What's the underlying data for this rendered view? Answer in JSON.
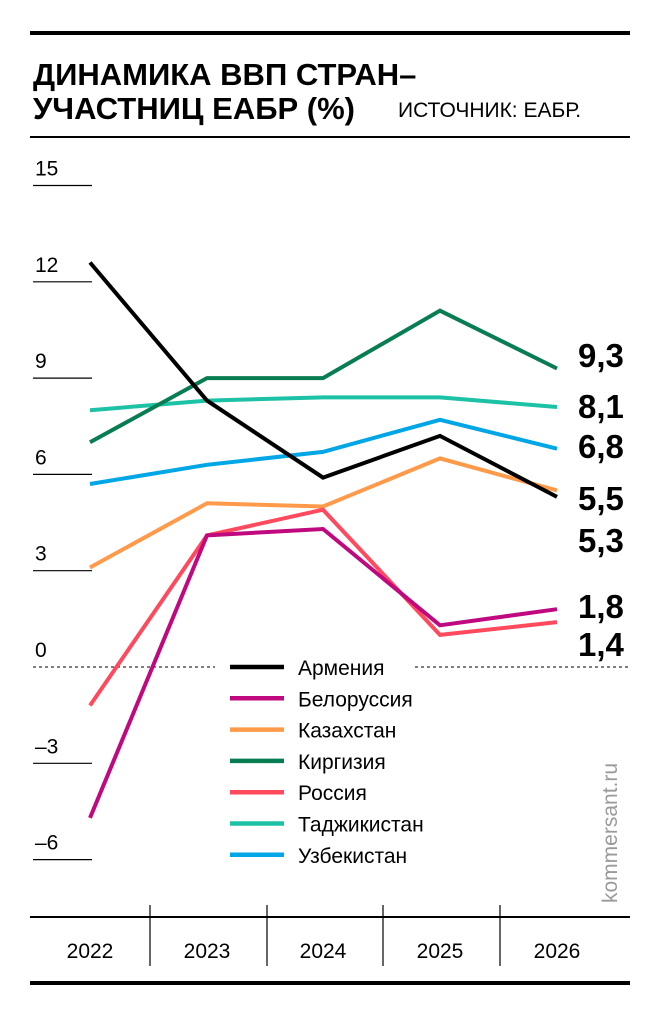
{
  "chart_data": {
    "type": "line",
    "title_line1": "ДИНАМИКА ВВП СТРАН–",
    "title_line2": "УЧАСТНИЦ ЕАБР (%)",
    "source": "ИСТОЧНИК: ЕАБР.",
    "watermark": "kommersant.ru",
    "xlabel": "",
    "ylabel": "",
    "categories": [
      "2022",
      "2023",
      "2024",
      "2025",
      "2026"
    ],
    "ylim": [
      -6,
      15
    ],
    "yticks": [
      15,
      12,
      9,
      6,
      3,
      0,
      -3,
      -6
    ],
    "ytick_labels": [
      "15",
      "12",
      "9",
      "6",
      "3",
      "0",
      "–3",
      "–6"
    ],
    "legend_position": "bottom-center",
    "series": [
      {
        "name": "Армения",
        "color": "#000000",
        "values": [
          12.6,
          8.3,
          5.9,
          7.2,
          5.3
        ],
        "end_label": "5,3"
      },
      {
        "name": "Белоруссия",
        "color": "#c0087f",
        "values": [
          -4.7,
          4.1,
          4.3,
          1.3,
          1.8
        ],
        "end_label": "1,8"
      },
      {
        "name": "Казахстан",
        "color": "#ff9a4a",
        "values": [
          3.1,
          5.1,
          5.0,
          6.5,
          5.5
        ],
        "end_label": "5,5"
      },
      {
        "name": "Киргизия",
        "color": "#087d52",
        "values": [
          7.0,
          9.0,
          9.0,
          11.1,
          9.3
        ],
        "end_label": "9,3"
      },
      {
        "name": "Россия",
        "color": "#ff4a5e",
        "values": [
          -1.2,
          4.1,
          4.9,
          1.0,
          1.4
        ],
        "end_label": "1,4"
      },
      {
        "name": "Таджикистан",
        "color": "#1dc2a6",
        "values": [
          8.0,
          8.3,
          8.4,
          8.4,
          8.1
        ],
        "end_label": "8,1"
      },
      {
        "name": "Узбекистан",
        "color": "#00a6e6",
        "values": [
          5.7,
          6.3,
          6.7,
          7.7,
          6.8
        ],
        "end_label": "6,8"
      }
    ]
  }
}
